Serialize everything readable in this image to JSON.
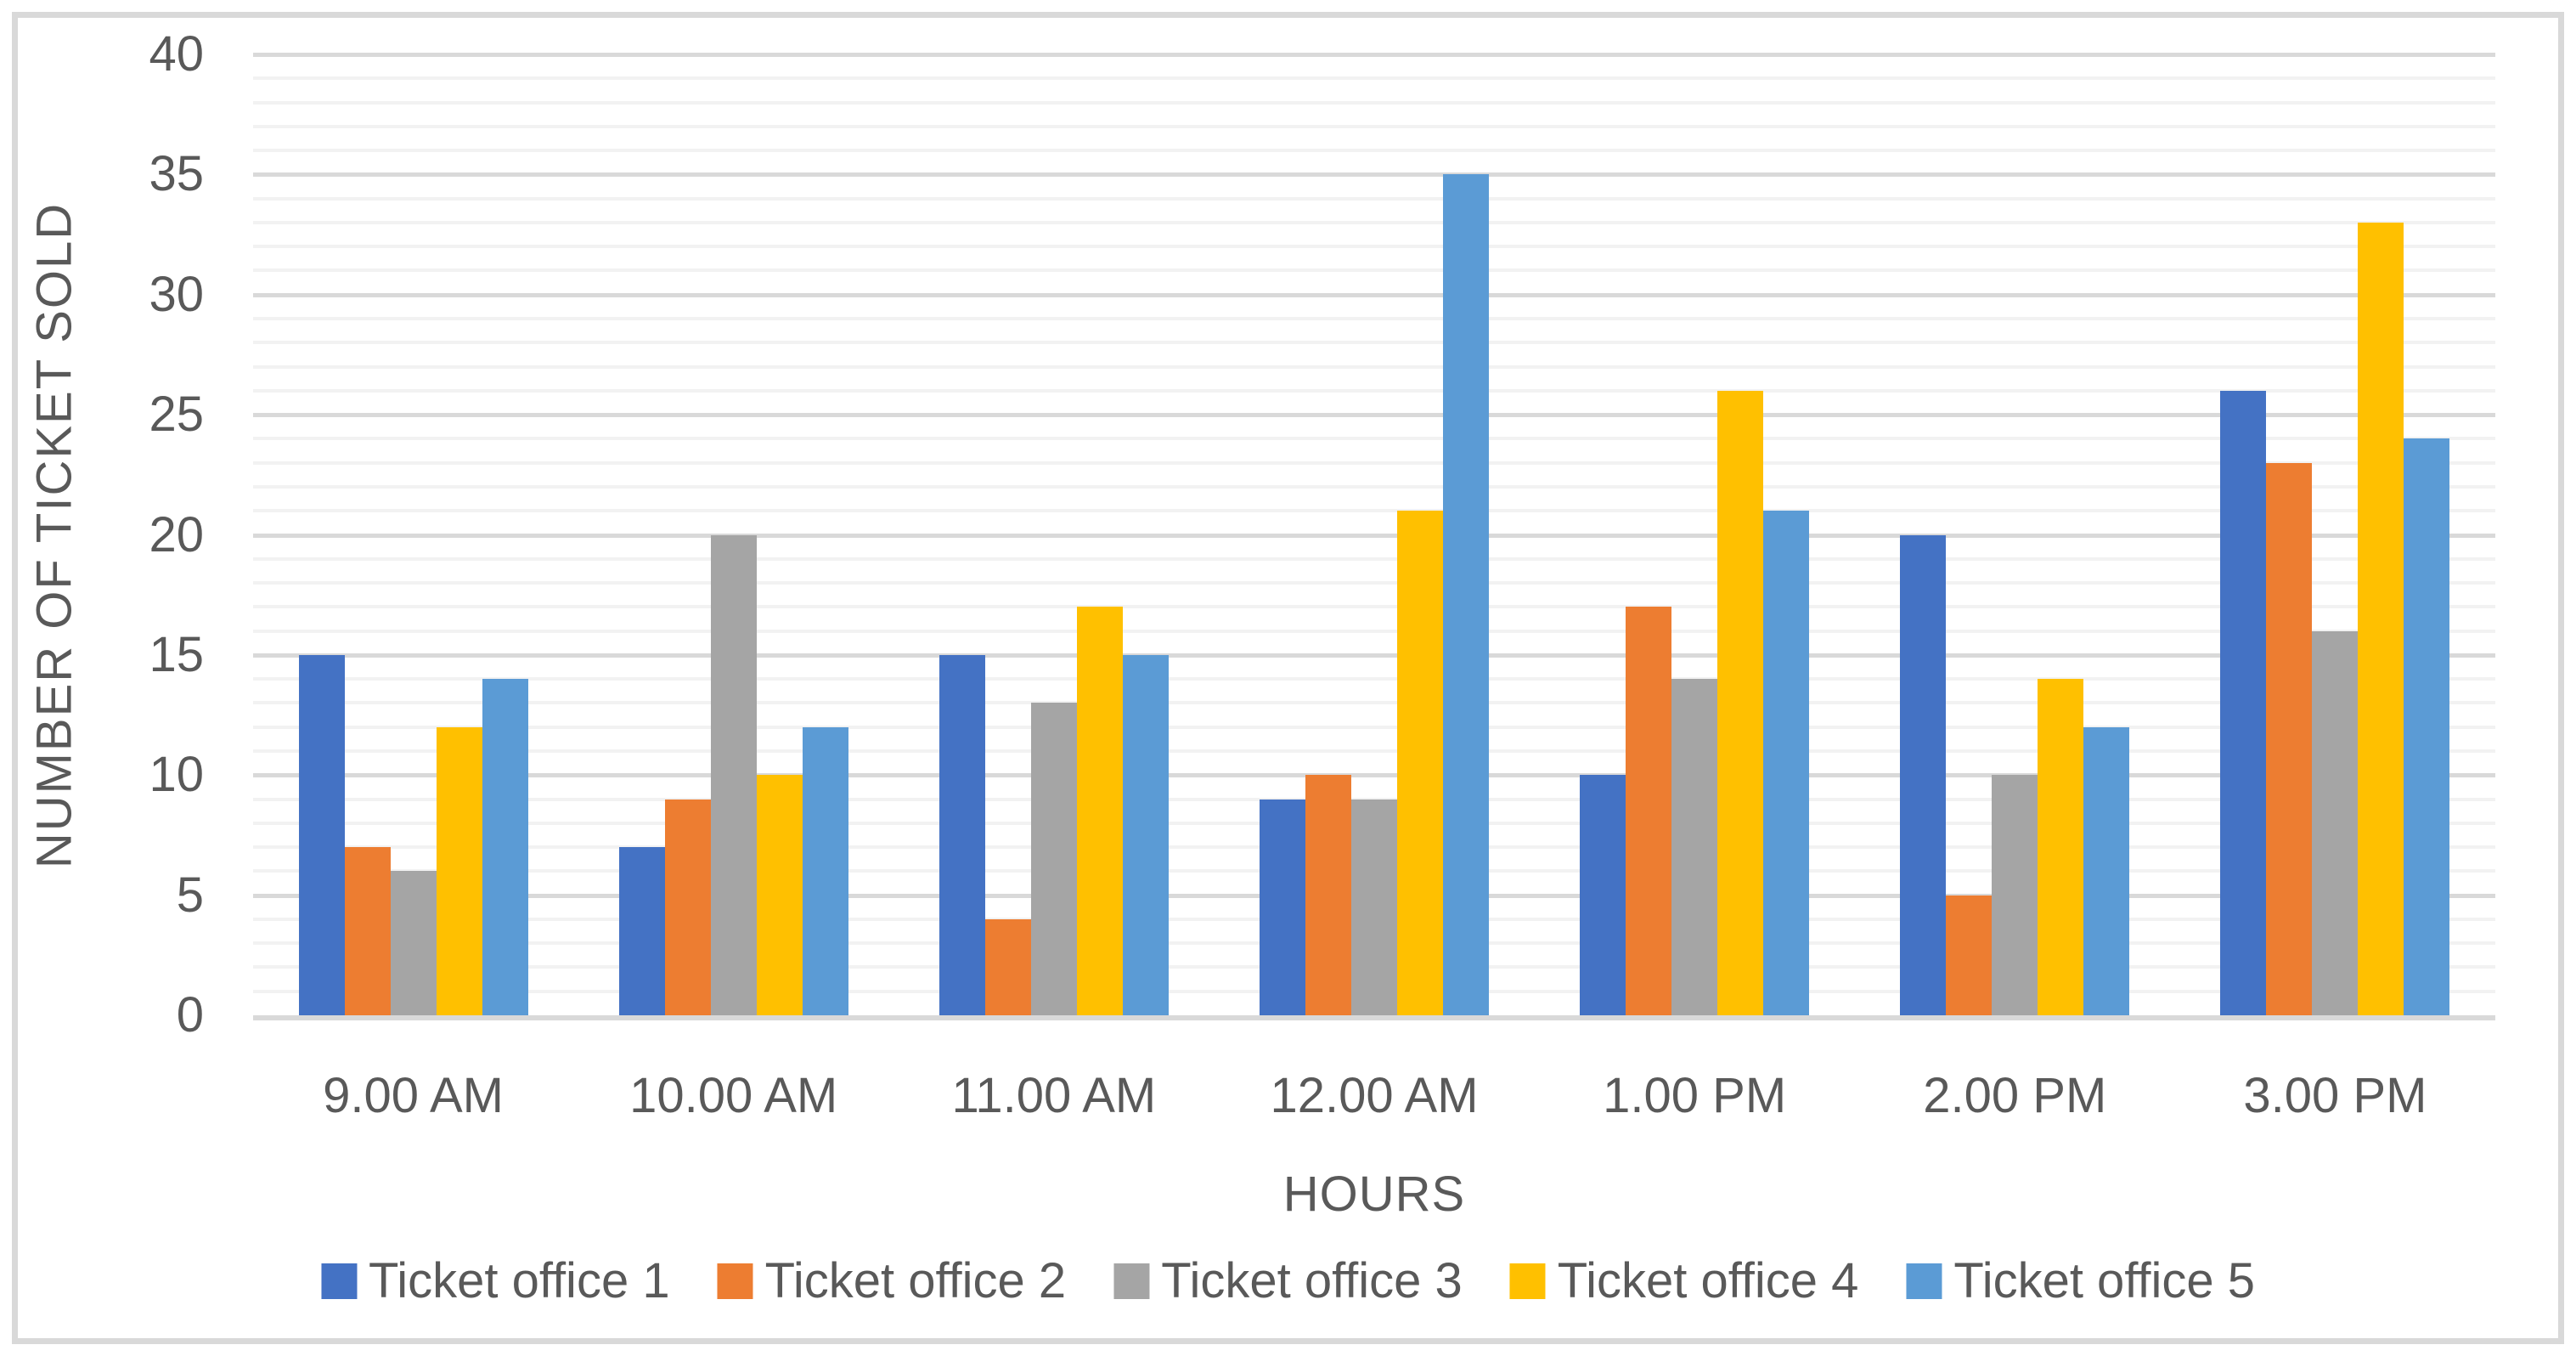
{
  "chart_data": {
    "type": "bar",
    "title": "",
    "xlabel": "HOURS",
    "ylabel": "NUMBER OF TICKET SOLD",
    "categories": [
      "9.00 AM",
      "10.00 AM",
      "11.00 AM",
      "12.00 AM",
      "1.00 PM",
      "2.00 PM",
      "3.00 PM"
    ],
    "series": [
      {
        "name": "Ticket office 1",
        "color": "#4472C4",
        "values": [
          15,
          7,
          15,
          9,
          10,
          20,
          26
        ]
      },
      {
        "name": "Ticket office 2",
        "color": "#ED7D31",
        "values": [
          7,
          9,
          4,
          10,
          17,
          5,
          23
        ]
      },
      {
        "name": "Ticket office 3",
        "color": "#A5A5A5",
        "values": [
          6,
          20,
          13,
          9,
          14,
          10,
          16
        ]
      },
      {
        "name": "Ticket office 4",
        "color": "#FFC000",
        "values": [
          12,
          10,
          17,
          21,
          26,
          14,
          33
        ]
      },
      {
        "name": "Ticket office 5",
        "color": "#5B9BD5",
        "values": [
          14,
          12,
          15,
          35,
          21,
          12,
          24
        ]
      }
    ],
    "ylim": [
      0,
      40
    ],
    "y_major_ticks": [
      0,
      5,
      10,
      15,
      20,
      25,
      30,
      35,
      40
    ],
    "y_minor_step": 1,
    "grid": "major+minor",
    "legend_position": "bottom"
  },
  "colors": {
    "major_gridline": "#D9D9D9",
    "minor_gridline": "#F2F2F2",
    "axis_line": "#D9D9D9",
    "chart_border": "#D9D9D9",
    "text": "#595959",
    "background": "#FFFFFF"
  }
}
